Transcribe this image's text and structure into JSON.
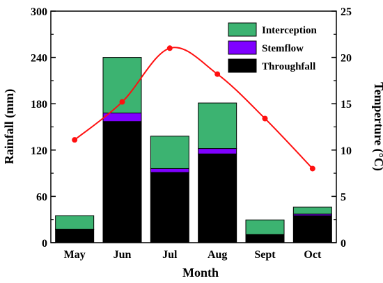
{
  "colors": {
    "interception": "#3cb371",
    "stemflow": "#7f00ff",
    "throughfall": "#000000",
    "temperature": "#ff1010",
    "axis": "#000000",
    "background": "#ffffff"
  },
  "chart_data": {
    "type": "bar",
    "stacked": true,
    "xlabel": "Month",
    "ylabel": "Rainfall (mm)",
    "y2label": "Temperture (°C)",
    "categories": [
      "May",
      "Jun",
      "Jul",
      "Aug",
      "Sept",
      "Oct"
    ],
    "ylim": [
      0,
      300
    ],
    "y_ticks": [
      "0",
      "60",
      "120",
      "180",
      "240",
      "300"
    ],
    "y2lim": [
      0,
      25
    ],
    "y2_ticks": [
      "0",
      "5",
      "10",
      "15",
      "20",
      "25"
    ],
    "legend_position": "top-right",
    "legend": [
      "Interception",
      "Stemflow",
      "Throughfall"
    ],
    "series": [
      {
        "name": "Throughfall",
        "values": [
          17,
          157,
          91,
          115,
          10,
          35
        ]
      },
      {
        "name": "Stemflow",
        "values": [
          0.5,
          11,
          5,
          7,
          0.5,
          2
        ]
      },
      {
        "name": "Interception",
        "values": [
          17.5,
          72,
          42,
          59,
          19,
          9
        ]
      }
    ],
    "line_series": {
      "axis": "y2",
      "marker": "circle",
      "values": [
        11.1,
        15.2,
        21.0,
        18.2,
        13.4,
        8.0
      ]
    }
  }
}
